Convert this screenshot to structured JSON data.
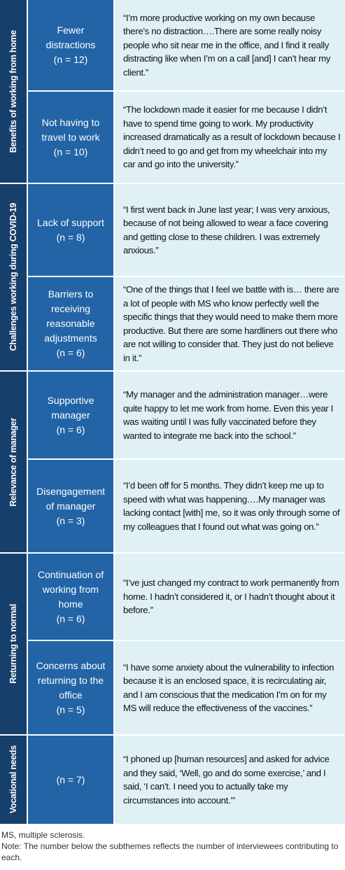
{
  "themes": [
    {
      "name": "Benefits of working from home",
      "subthemes": [
        {
          "name": "Fewer distractions",
          "n": "(n = 12)",
          "quote": "“I’m more productive working on my own because there’s no distraction….There are some really noisy people who sit near me in the office, and I find it really distracting like when I’m on a call [and] I can’t hear my client.”"
        },
        {
          "name": "Not having to travel to work",
          "n": "(n = 10)",
          "quote": "“The lockdown made it easier for me because I didn’t have to spend time going to work. My productivity increased dramatically as a result of lockdown because I didn’t need to go and get from my wheelchair into my car and go into the university.”"
        }
      ]
    },
    {
      "name": "Challenges working during COVID-19",
      "subthemes": [
        {
          "name": "Lack of support",
          "n": "(n = 8)",
          "quote": "“I first went back in June last year; I was very anxious, because of not being allowed to wear a face covering and getting close to these children. I was extremely anxious.”"
        },
        {
          "name": "Barriers to receiving reasonable adjustments",
          "n": "(n = 6)",
          "quote": "“One of the things that I feel we battle with is… there are a lot of people with MS who know perfectly well the specific things that they would need to make them more productive. But there are some hardliners out there who are not willing to consider that. They just do not believe in it.”"
        }
      ]
    },
    {
      "name": "Relevance of manager",
      "subthemes": [
        {
          "name": "Supportive manager",
          "n": "(n = 6)",
          "quote": "“My manager and the administration manager…were quite happy to let me work from home. Even this year I was waiting until I was fully vaccinated before they wanted to integrate me back into the school.”"
        },
        {
          "name": "Disengagement of manager",
          "n": "(n = 3)",
          "quote": "“I’d been off for 5 months. They didn’t keep me up to speed with what was happening….My manager was lacking contact [with] me, so it was only through some of my colleagues that I found out what was going on.”"
        }
      ]
    },
    {
      "name": "Returning to normal",
      "subthemes": [
        {
          "name": "Continuation of working from home",
          "n": "(n = 6)",
          "quote": "“I’ve just changed my contract to work permanently from home. I hadn’t considered it, or I hadn’t thought about it before.”"
        },
        {
          "name": "Concerns about returning to the office",
          "n": "(n = 5)",
          "quote": "“I have some anxiety about the vulnerability to infection because it is an enclosed space, it is recirculating air, and I am conscious that the medication I’m on for my MS will reduce the effectiveness of the vaccines.”"
        }
      ]
    },
    {
      "name": "Vocational needs",
      "subthemes": [
        {
          "n": "(n = 7)",
          "quote": "“I phoned up [human resources] and asked for advice and they said, ‘Well, go and do some exercise,’ and I said, ‘I can’t. I need you to actually take my circumstances into account.’”"
        }
      ]
    }
  ],
  "footnote": {
    "abbreviation": "MS, multiple sclerosis.",
    "note": "Note: The number below the subthemes reflects the number of interviewees contributing to each."
  }
}
